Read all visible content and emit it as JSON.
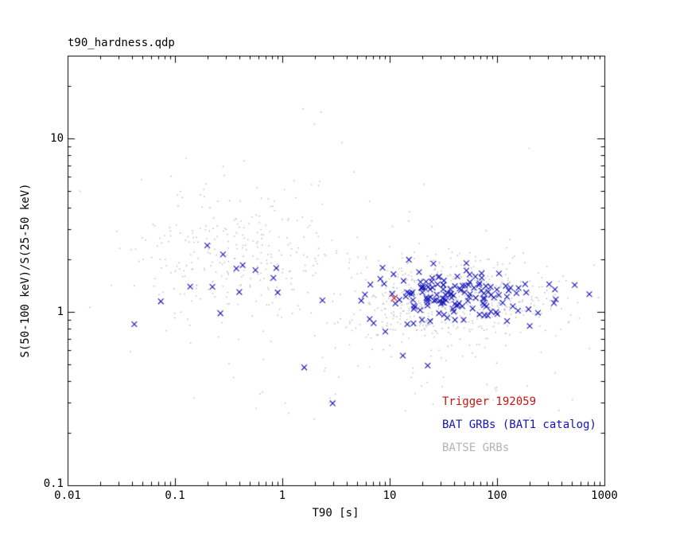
{
  "chart_data": {
    "type": "scatter",
    "title": "t90_hardness.qdp",
    "xlabel": "T90 [s]",
    "ylabel": "S(50-100 keV)/S(25-50 keV)",
    "xscale": "log",
    "yscale": "log",
    "xlim": [
      0.01,
      1000
    ],
    "ylim": [
      0.1,
      30
    ],
    "grid": false,
    "x_ticks": [
      "0.01",
      "0.1",
      "1",
      "10",
      "100",
      "1000"
    ],
    "y_ticks": [
      "10",
      "1",
      "0.1"
    ],
    "x_tick_values": [
      0.01,
      0.1,
      1,
      10,
      100,
      1000
    ],
    "y_tick_values": [
      10,
      1,
      0.1
    ],
    "legend_position": "bottom-right-inside",
    "legend": [
      {
        "label": "Trigger 192059",
        "color": "#cc1111"
      },
      {
        "label": "BAT GRBs (BAT1 catalog)",
        "color": "#1414b4"
      },
      {
        "label": "BATSE GRBs",
        "color": "#b3b3b3"
      }
    ],
    "seed": 42,
    "series": [
      {
        "name": "BATSE GRBs",
        "marker": "dot",
        "color": "#b3b3b3",
        "size": 1.4,
        "clusters": [
          {
            "count": 560,
            "mx": 1.55,
            "sx": 0.5,
            "my": 0.07,
            "sy": 0.12
          },
          {
            "count": 260,
            "mx": -0.45,
            "sx": 0.48,
            "my": 0.33,
            "sy": 0.2
          },
          {
            "count": 90,
            "mx": 0.6,
            "sx": 1.0,
            "my": 0.1,
            "sy": 0.35
          },
          {
            "count": 40,
            "mx": 1.3,
            "sx": 0.7,
            "my": -0.35,
            "sy": 0.15
          },
          {
            "count": 12,
            "mx": 0.2,
            "sx": 0.9,
            "my": 0.9,
            "sy": 0.25
          }
        ]
      },
      {
        "name": "BAT GRBs (BAT1 catalog)",
        "marker": "x",
        "color": "#1414b4",
        "size": 3.4,
        "clusters": [
          {
            "count": 150,
            "mx": 1.62,
            "sx": 0.42,
            "my": 0.09,
            "sy": 0.085
          },
          {
            "count": 14,
            "mx": -0.6,
            "sx": 0.45,
            "my": 0.13,
            "sy": 0.13
          },
          {
            "count": 5,
            "mx": 0.8,
            "sx": 0.6,
            "my": -0.28,
            "sy": 0.1
          }
        ]
      },
      {
        "name": "Trigger 192059",
        "marker": "x",
        "color": "#cc1111",
        "size": 4.2,
        "points": [
          [
            11,
            1.2
          ]
        ]
      }
    ]
  }
}
